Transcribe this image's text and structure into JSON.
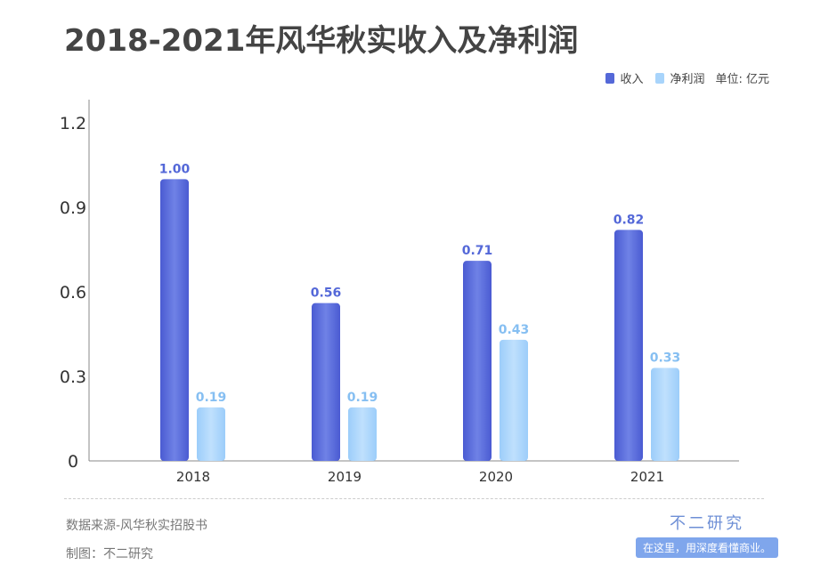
{
  "title": "2018-2021年风华秋实收入及净利润",
  "legend": {
    "unit": "单位: 亿元"
  },
  "footer": {
    "source": "数据来源-风华秋实招股书",
    "maker": "制图：不二研究"
  },
  "brand": {
    "name": "不二研究",
    "slogan": "在这里，用深度看懂商业。"
  },
  "colors": {
    "revenue": "#5468d8",
    "net_profit": "#a8d4fb"
  },
  "chart_data": {
    "type": "bar",
    "title": "2018-2021年风华秋实收入及净利润",
    "categories": [
      "2018",
      "2019",
      "2020",
      "2021"
    ],
    "series": [
      {
        "name": "收入",
        "values": [
          1.0,
          0.56,
          0.71,
          0.82
        ],
        "labels": [
          "1.00",
          "0.56",
          "0.71",
          "0.82"
        ]
      },
      {
        "name": "净利润",
        "values": [
          0.19,
          0.19,
          0.43,
          0.33
        ],
        "labels": [
          "0.19",
          "0.19",
          "0.43",
          "0.33"
        ]
      }
    ],
    "yticks": [
      "0",
      "0.3",
      "0.6",
      "0.9",
      "1.2"
    ],
    "ylim": [
      0,
      1.2
    ],
    "grid": false,
    "legend_position": "top-right"
  }
}
